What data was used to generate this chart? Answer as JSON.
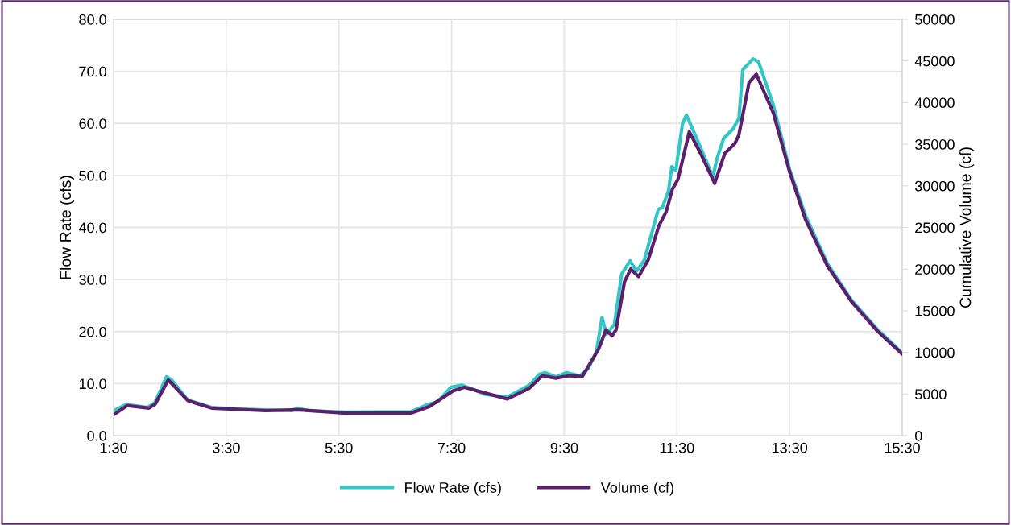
{
  "chart_data": {
    "type": "line",
    "ylabel": "Flow Rate (cfs)",
    "y2label": "Cumulative Volume (cf)",
    "xlim": [
      1.5,
      15.5
    ],
    "xticks": [
      {
        "value": 1.5,
        "label": "1:30"
      },
      {
        "value": 3.5,
        "label": "3:30"
      },
      {
        "value": 5.5,
        "label": "5:30"
      },
      {
        "value": 7.5,
        "label": "7:30"
      },
      {
        "value": 9.5,
        "label": "9:30"
      },
      {
        "value": 11.5,
        "label": "11:30"
      },
      {
        "value": 13.5,
        "label": "13:30"
      },
      {
        "value": 15.5,
        "label": "15:30"
      }
    ],
    "ylim": [
      0,
      80
    ],
    "yticks": [
      {
        "value": 0,
        "label": "0.0"
      },
      {
        "value": 10,
        "label": "10.0"
      },
      {
        "value": 20,
        "label": "20.0"
      },
      {
        "value": 30,
        "label": "30.0"
      },
      {
        "value": 40,
        "label": "40.0"
      },
      {
        "value": 50,
        "label": "50.0"
      },
      {
        "value": 60,
        "label": "60.0"
      },
      {
        "value": 70,
        "label": "70.0"
      },
      {
        "value": 80,
        "label": "80.0"
      }
    ],
    "y2lim": [
      0,
      50000
    ],
    "y2ticks": [
      0,
      5000,
      10000,
      15000,
      20000,
      25000,
      30000,
      35000,
      40000,
      45000,
      50000
    ],
    "grid": true,
    "legend": "bottom",
    "line_style": "solid",
    "marker": "none",
    "series": [
      {
        "name": "Flow Rate (cfs)",
        "color": "#33c6c6",
        "x": [
          1.5,
          1.73,
          2.1,
          2.23,
          2.44,
          2.53,
          2.82,
          3.24,
          3.73,
          4.67,
          4.75,
          4.96,
          5.63,
          6.78,
          7.06,
          7.25,
          7.49,
          7.68,
          8.11,
          8.49,
          8.88,
          9.06,
          9.16,
          9.35,
          9.54,
          9.78,
          9.92,
          10.07,
          10.17,
          10.25,
          10.39,
          10.52,
          10.67,
          10.78,
          10.92,
          11.17,
          11.24,
          11.35,
          11.41,
          11.48,
          11.6,
          11.67,
          11.82,
          12.14,
          12.21,
          12.33,
          12.5,
          12.6,
          12.67,
          12.85,
          12.95,
          13.21,
          13.5,
          13.78,
          14.17,
          14.6,
          15.07,
          15.5
        ],
        "values": [
          4.8,
          6.0,
          5.4,
          6.3,
          11.3,
          10.7,
          6.8,
          5.4,
          5.1,
          4.8,
          5.3,
          4.8,
          4.5,
          4.6,
          5.9,
          6.5,
          9.3,
          9.7,
          7.9,
          7.4,
          9.7,
          11.8,
          12.1,
          11.3,
          12.1,
          11.5,
          12.8,
          16.1,
          22.7,
          19.5,
          21.4,
          31.1,
          33.6,
          31.6,
          33.7,
          43.5,
          43.8,
          47.0,
          51.7,
          50.9,
          60.0,
          61.6,
          57.9,
          49.7,
          53.2,
          57.1,
          59.0,
          61.0,
          70.3,
          72.4,
          71.8,
          63.6,
          51.2,
          42.4,
          33.1,
          26.0,
          20.3,
          15.9
        ]
      },
      {
        "name": "Volume (cf)",
        "color": "#5c1f6b",
        "axis": "y2",
        "x": [
          1.5,
          1.74,
          2.13,
          2.24,
          2.47,
          2.82,
          3.24,
          4.2,
          4.77,
          5.63,
          6.78,
          7.11,
          7.53,
          7.73,
          8.49,
          8.88,
          9.11,
          9.35,
          9.59,
          9.82,
          10.11,
          10.24,
          10.35,
          10.42,
          10.57,
          10.68,
          10.82,
          10.99,
          11.18,
          11.31,
          11.42,
          11.52,
          11.72,
          11.92,
          12.17,
          12.35,
          12.53,
          12.6,
          12.78,
          12.91,
          13.21,
          13.5,
          13.78,
          14.17,
          14.6,
          15.07,
          15.5
        ],
        "values": [
          2500,
          3600,
          3300,
          3800,
          6700,
          4200,
          3300,
          3000,
          3100,
          2700,
          2700,
          3500,
          5400,
          5800,
          4400,
          5700,
          7200,
          6900,
          7200,
          7100,
          10400,
          12700,
          12000,
          12700,
          18500,
          20000,
          19100,
          21100,
          25200,
          26900,
          29600,
          30800,
          36500,
          33900,
          30300,
          33900,
          35100,
          36100,
          42400,
          43400,
          38800,
          31700,
          26000,
          20400,
          16100,
          12500,
          9800
        ]
      }
    ]
  }
}
